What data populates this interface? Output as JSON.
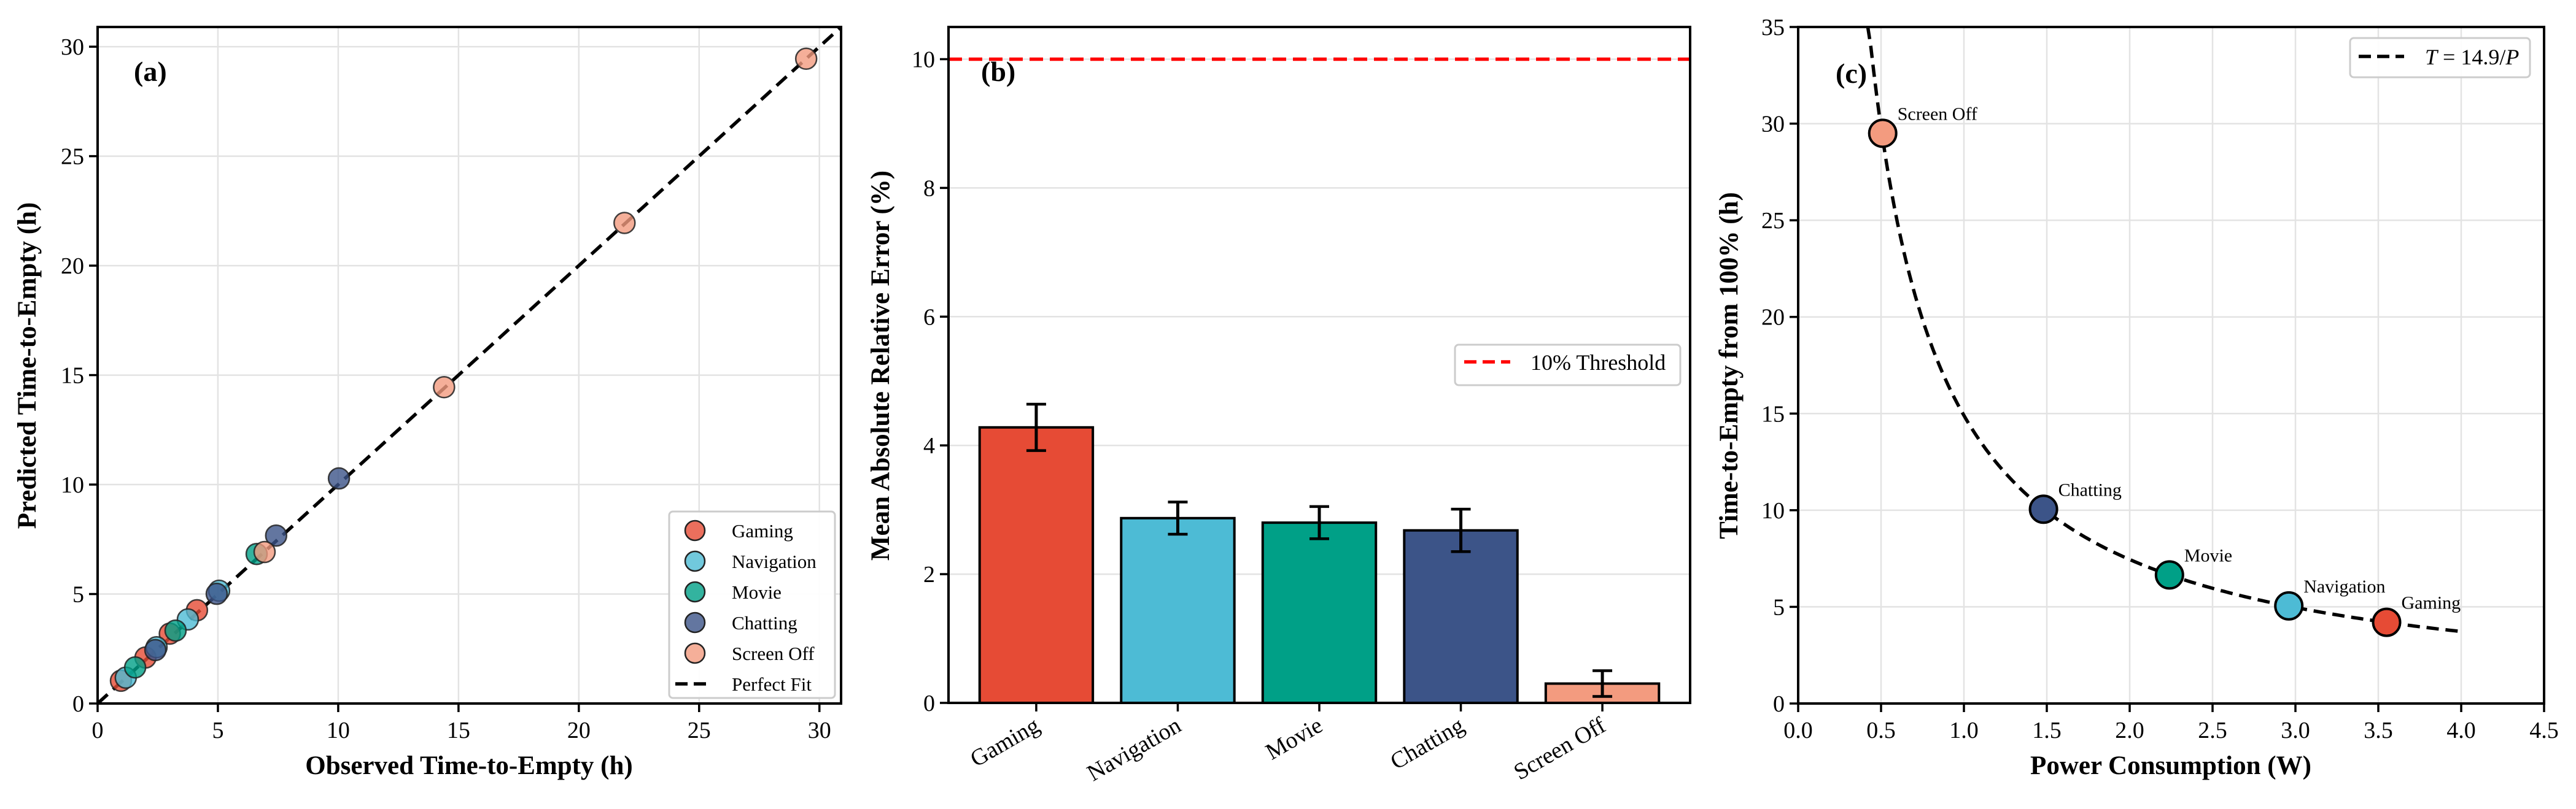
{
  "figure": {
    "panels": [
      "(a)",
      "(b)",
      "(c)"
    ]
  },
  "categories": [
    "Gaming",
    "Navigation",
    "Movie",
    "Chatting",
    "Screen Off"
  ],
  "colors": {
    "Gaming": "#E64B35",
    "Navigation": "#4DBBD5",
    "Movie": "#00A087",
    "Chatting": "#3C5488",
    "Screen Off": "#F39B7F",
    "threshold": "#FF0000",
    "fit": "#000000"
  },
  "chart_data": [
    {
      "id": "a",
      "type": "scatter",
      "panel_label": "(a)",
      "title": "",
      "xlabel": "Observed Time-to-Empty (h)",
      "ylabel": "Predicted Time-to-Empty (h)",
      "xlim": [
        0,
        30.9
      ],
      "ylim": [
        0,
        30.9
      ],
      "xticks": [
        0,
        5,
        10,
        15,
        20,
        25,
        30
      ],
      "yticks": [
        0,
        5,
        10,
        15,
        20,
        25,
        30
      ],
      "grid": true,
      "legend_position": "bottom-right",
      "reference_line": {
        "label": "Perfect Fit",
        "from": [
          0,
          0
        ],
        "to": [
          30.9,
          30.9
        ],
        "style": "dashed"
      },
      "series": [
        {
          "name": "Gaming",
          "points": [
            [
              0.97,
              1.04
            ],
            [
              1.99,
              2.1
            ],
            [
              3.0,
              3.19
            ],
            [
              4.13,
              4.26
            ]
          ]
        },
        {
          "name": "Navigation",
          "points": [
            [
              1.17,
              1.18
            ],
            [
              2.45,
              2.57
            ],
            [
              3.75,
              3.84
            ],
            [
              5.05,
              5.15
            ]
          ]
        },
        {
          "name": "Movie",
          "points": [
            [
              1.56,
              1.65
            ],
            [
              3.24,
              3.33
            ],
            [
              6.61,
              6.83
            ]
          ]
        },
        {
          "name": "Chatting",
          "points": [
            [
              2.4,
              2.44
            ],
            [
              4.95,
              5.01
            ],
            [
              7.42,
              7.67
            ],
            [
              10.03,
              10.28
            ]
          ]
        },
        {
          "name": "Screen Off",
          "points": [
            [
              6.94,
              6.92
            ],
            [
              14.4,
              14.45
            ],
            [
              21.9,
              21.95
            ],
            [
              29.45,
              29.45
            ]
          ]
        }
      ],
      "legend": [
        "Gaming",
        "Navigation",
        "Movie",
        "Chatting",
        "Screen Off",
        "Perfect Fit"
      ]
    },
    {
      "id": "b",
      "type": "bar",
      "panel_label": "(b)",
      "title": "",
      "xlabel": "",
      "ylabel": "Mean Absolute Relative Error (%)",
      "categories": [
        "Gaming",
        "Navigation",
        "Movie",
        "Chatting",
        "Screen Off"
      ],
      "values": [
        4.28,
        2.87,
        2.8,
        2.68,
        0.3
      ],
      "errors": [
        0.36,
        0.25,
        0.25,
        0.33,
        0.2
      ],
      "ylim": [
        0,
        10.5
      ],
      "yticks": [
        0,
        2,
        4,
        6,
        8,
        10
      ],
      "grid": true,
      "threshold": {
        "value": 10,
        "label": "10% Threshold",
        "style": "dashed"
      },
      "legend_position": "center-right",
      "xtick_rotation": -30
    },
    {
      "id": "c",
      "type": "scatter",
      "panel_label": "(c)",
      "title": "",
      "xlabel": "Power Consumption (W)",
      "ylabel": "Time-to-Empty from 100% (h)",
      "xlim": [
        0,
        4.5
      ],
      "ylim": [
        0,
        35
      ],
      "xticks": [
        0.0,
        0.5,
        1.0,
        1.5,
        2.0,
        2.5,
        3.0,
        3.5,
        4.0,
        4.5
      ],
      "yticks": [
        0,
        5,
        10,
        15,
        20,
        25,
        30,
        35
      ],
      "grid": true,
      "curve": {
        "label_prefix": "T",
        "label_eq": " = 14.9/",
        "label_var": "P",
        "k": 14.9,
        "x_range": [
          0.42,
          4.0
        ],
        "style": "dashed"
      },
      "points": [
        {
          "name": "Screen Off",
          "x": 0.51,
          "y": 29.5
        },
        {
          "name": "Chatting",
          "x": 1.48,
          "y": 10.05
        },
        {
          "name": "Movie",
          "x": 2.24,
          "y": 6.65
        },
        {
          "name": "Navigation",
          "x": 2.96,
          "y": 5.05
        },
        {
          "name": "Gaming",
          "x": 3.55,
          "y": 4.2
        }
      ],
      "legend_position": "top-right"
    }
  ]
}
